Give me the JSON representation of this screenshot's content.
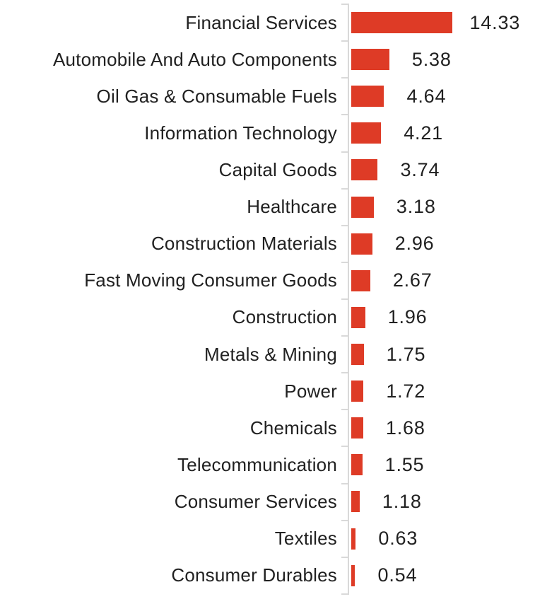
{
  "chart_data": {
    "type": "bar",
    "orientation": "horizontal",
    "title": "",
    "xlabel": "",
    "ylabel": "",
    "xlim": [
      0,
      14.6
    ],
    "grid": false,
    "legend": false,
    "value_labels_shown": true,
    "value_decimals": 2,
    "colors": {
      "bar": "#DE3B26",
      "axis": "#D9D9D9",
      "text": "#212121",
      "background": "#FFFFFF"
    },
    "categories": [
      "Financial Services",
      "Automobile And Auto Components",
      "Oil Gas & Consumable Fuels",
      "Information Technology",
      "Capital Goods",
      "Healthcare",
      "Construction Materials",
      "Fast Moving Consumer Goods",
      "Construction",
      "Metals & Mining",
      "Power",
      "Chemicals",
      "Telecommunication",
      "Consumer Services",
      "Textiles",
      "Consumer Durables"
    ],
    "values": [
      14.33,
      5.38,
      4.64,
      4.21,
      3.74,
      3.18,
      2.96,
      2.67,
      1.96,
      1.75,
      1.72,
      1.68,
      1.55,
      1.18,
      0.63,
      0.54
    ]
  }
}
